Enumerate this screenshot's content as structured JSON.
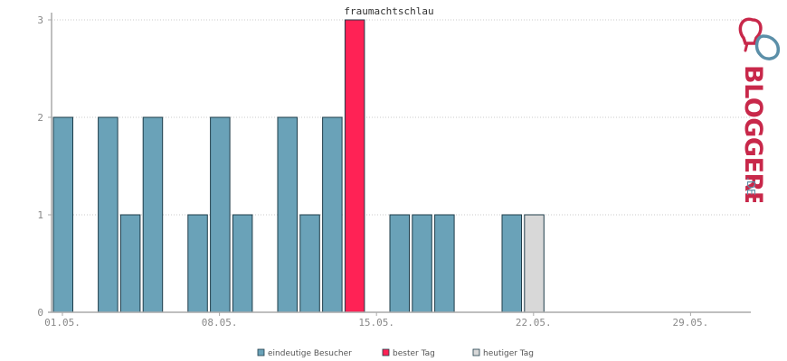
{
  "chart_data": {
    "type": "bar",
    "title": "fraumachtschlau",
    "days": 31,
    "ylim": [
      0,
      3
    ],
    "yticks": [
      "0",
      "1",
      "2",
      "3"
    ],
    "xticks": [
      {
        "day": 1,
        "label": "01.05."
      },
      {
        "day": 8,
        "label": "08.05."
      },
      {
        "day": 15,
        "label": "15.05."
      },
      {
        "day": 22,
        "label": "22.05."
      },
      {
        "day": 29,
        "label": "29.05."
      }
    ],
    "bars": [
      {
        "day": 1,
        "value": 2,
        "kind": "visitors"
      },
      {
        "day": 3,
        "value": 2,
        "kind": "visitors"
      },
      {
        "day": 4,
        "value": 1,
        "kind": "visitors"
      },
      {
        "day": 5,
        "value": 2,
        "kind": "visitors"
      },
      {
        "day": 7,
        "value": 1,
        "kind": "visitors"
      },
      {
        "day": 8,
        "value": 2,
        "kind": "visitors"
      },
      {
        "day": 9,
        "value": 1,
        "kind": "visitors"
      },
      {
        "day": 11,
        "value": 2,
        "kind": "visitors"
      },
      {
        "day": 12,
        "value": 1,
        "kind": "visitors"
      },
      {
        "day": 13,
        "value": 2,
        "kind": "visitors"
      },
      {
        "day": 14,
        "value": 3,
        "kind": "best"
      },
      {
        "day": 16,
        "value": 1,
        "kind": "visitors"
      },
      {
        "day": 17,
        "value": 1,
        "kind": "visitors"
      },
      {
        "day": 18,
        "value": 1,
        "kind": "visitors"
      },
      {
        "day": 21,
        "value": 1,
        "kind": "visitors"
      },
      {
        "day": 22,
        "value": 1,
        "kind": "today"
      }
    ],
    "legend": [
      {
        "kind": "visitors",
        "label": "eindeutige Besucher"
      },
      {
        "kind": "best",
        "label": "bester Tag"
      },
      {
        "kind": "today",
        "label": "heutiger Tag"
      }
    ],
    "colors": {
      "visitors": "#6aa2b8",
      "best": "#ff2255",
      "today": "#d8d8d8",
      "bar_border": "#1f3d4a",
      "axis": "#aaaaaa",
      "grid": "#bbbbbb"
    },
    "grid": true,
    "legend_position": "bottom"
  },
  "logo": {
    "text": "BLOGGEREI",
    "suffix": ".DE",
    "colors": {
      "primary": "#c8284a",
      "secondary": "#5b8fa8"
    }
  }
}
